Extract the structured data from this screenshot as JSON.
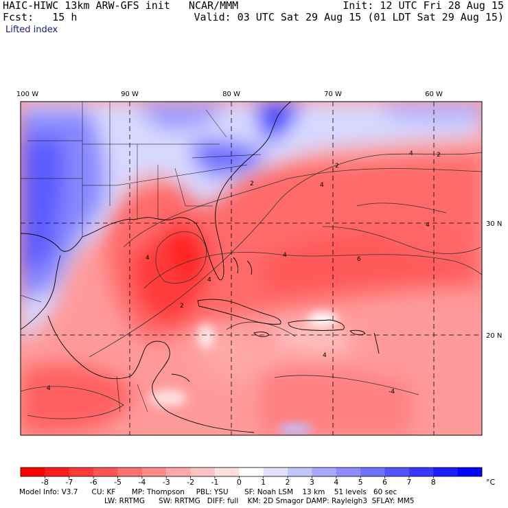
{
  "header": {
    "title_left": "HAIC-HIWC 13km ARW-GFS init   NCAR/MMM",
    "forecast": "Fcst:   15 h",
    "field_name": "Lifted index",
    "init": "Init: 12 UTC Fri 28 Aug 15",
    "valid": "Valid: 03 UTC Sat 29 Aug 15 (01 LDT Sat 29 Aug 15)"
  },
  "map": {
    "lon_labels": [
      "100 W",
      "90 W",
      "80 W",
      "70 W",
      "60 W"
    ],
    "lat_labels": [
      "30 N",
      "20 N"
    ],
    "contour_labels": [
      "2",
      "4",
      "2",
      "4",
      "-4",
      "2",
      "4",
      "4",
      "4",
      "2",
      "4",
      "6",
      "4",
      "4"
    ]
  },
  "colorbar": {
    "labels": [
      "-8",
      "-7",
      "-6",
      "-5",
      "-4",
      "-3",
      "-2",
      "-1",
      "0",
      "1",
      "2",
      "3",
      "4",
      "5",
      "6",
      "7",
      "8"
    ],
    "unit": "°C",
    "colors": [
      "#ff0000",
      "#ff1c1c",
      "#ff3838",
      "#ff5454",
      "#ff7070",
      "#ff8c8c",
      "#ffa8a8",
      "#ffc4c4",
      "#ffe0e0",
      "#ffffff",
      "#e0e0ff",
      "#c4c4ff",
      "#a8a8ff",
      "#8c8cff",
      "#7070ff",
      "#5454ff",
      "#3838ff",
      "#1c1cff",
      "#0000ff"
    ]
  },
  "model_info": {
    "line1": "Model Info: V3.7      CU: KF       MP: Thompson     PBL: YSU       SF: Noah LSM    13 km    51 levels   60 sec",
    "line2": "LW: RRTMG      SW: RRTMG   DIFF: full    KM: 2D Smagor DAMP: Rayleigh3  SFLAY: MM5"
  }
}
